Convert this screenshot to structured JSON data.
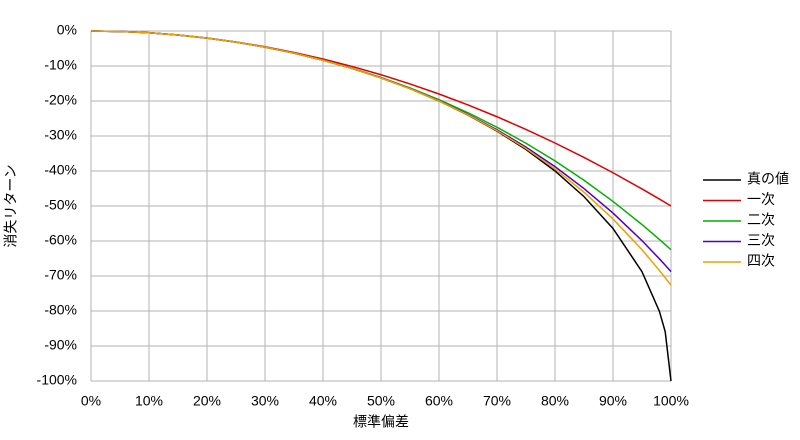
{
  "chart_data": {
    "type": "line",
    "x_label": "標準偏差",
    "y_label": "消失リターン",
    "x": [
      0,
      5,
      10,
      15,
      20,
      25,
      30,
      35,
      40,
      45,
      50,
      55,
      60,
      65,
      70,
      75,
      80,
      85,
      90,
      95,
      98,
      99,
      100
    ],
    "series": [
      {
        "name": "真の値",
        "color": "#000000",
        "values": [
          0,
          -0.13,
          -0.5,
          -1.13,
          -2.02,
          -3.18,
          -4.61,
          -6.33,
          -8.35,
          -10.7,
          -13.4,
          -16.48,
          -20,
          -24.01,
          -28.59,
          -33.86,
          -40,
          -47.32,
          -56.41,
          -68.78,
          -80.1,
          -85.89,
          -100
        ]
      },
      {
        "name": "一次",
        "color": "#e00000",
        "values": [
          0,
          -0.13,
          -0.5,
          -1.13,
          -2,
          -3.13,
          -4.5,
          -6.13,
          -8,
          -10.13,
          -12.5,
          -15.13,
          -18,
          -21.13,
          -24.5,
          -28.13,
          -32,
          -36.13,
          -40.5,
          -45.13,
          -48.02,
          -49.01,
          -50
        ]
      },
      {
        "name": "二次",
        "color": "#00b000",
        "values": [
          0,
          -0.13,
          -0.5,
          -1.13,
          -2.02,
          -3.17,
          -4.6,
          -6.31,
          -8.32,
          -10.64,
          -13.28,
          -16.27,
          -19.62,
          -23.36,
          -27.5,
          -32.08,
          -37.12,
          -42.65,
          -48.7,
          -55.31,
          -59.55,
          -61.02,
          -62.5
        ]
      },
      {
        "name": "三次",
        "color": "#5000c0",
        "values": [
          0,
          -0.13,
          -0.5,
          -1.13,
          -2.02,
          -3.18,
          -4.61,
          -6.33,
          -8.35,
          -10.69,
          -13.38,
          -16.44,
          -19.91,
          -23.83,
          -28.24,
          -33.19,
          -38.76,
          -45.01,
          -52.02,
          -59.9,
          -65.09,
          -66.9,
          -68.75
        ]
      },
      {
        "name": "四次",
        "color": "#f0a000",
        "values": [
          0,
          -0.13,
          -0.5,
          -1.13,
          -2.02,
          -3.18,
          -4.61,
          -6.33,
          -8.35,
          -10.7,
          -13.4,
          -16.47,
          -19.98,
          -23.96,
          -28.47,
          -33.58,
          -39.41,
          -46.07,
          -53.7,
          -62.49,
          -68.41,
          -70.5,
          -72.66
        ]
      }
    ],
    "xlim": [
      0,
      100
    ],
    "ylim": [
      -100,
      0
    ],
    "xticks": [
      {
        "value": 0,
        "label": "0%"
      },
      {
        "value": 10,
        "label": "10%"
      },
      {
        "value": 20,
        "label": "20%"
      },
      {
        "value": 30,
        "label": "30%"
      },
      {
        "value": 40,
        "label": "40%"
      },
      {
        "value": 50,
        "label": "50%"
      },
      {
        "value": 60,
        "label": "60%"
      },
      {
        "value": 70,
        "label": "70%"
      },
      {
        "value": 80,
        "label": "80%"
      },
      {
        "value": 90,
        "label": "90%"
      },
      {
        "value": 100,
        "label": "100%"
      }
    ],
    "yticks": [
      {
        "value": 0,
        "label": "0%"
      },
      {
        "value": -10,
        "label": "-10%"
      },
      {
        "value": -20,
        "label": "-20%"
      },
      {
        "value": -30,
        "label": "-30%"
      },
      {
        "value": -40,
        "label": "-40%"
      },
      {
        "value": -50,
        "label": "-50%"
      },
      {
        "value": -60,
        "label": "-60%"
      },
      {
        "value": -70,
        "label": "-70%"
      },
      {
        "value": -80,
        "label": "-80%"
      },
      {
        "value": -90,
        "label": "-90%"
      },
      {
        "value": -100,
        "label": "-100%"
      }
    ],
    "grid": true,
    "legend": "right"
  }
}
